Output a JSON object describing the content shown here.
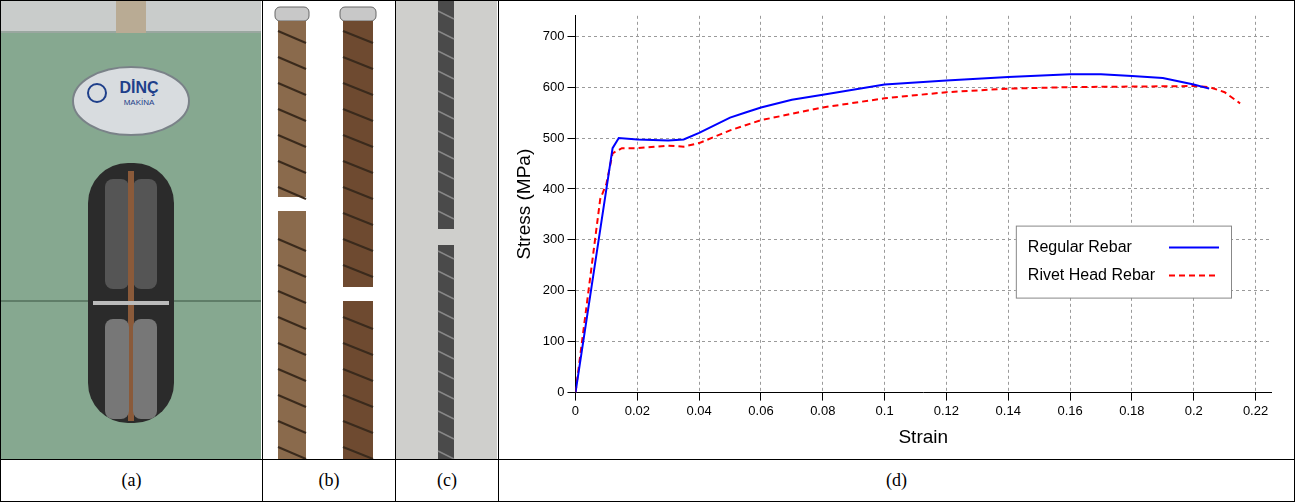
{
  "panels": [
    {
      "label": "(a)",
      "sign": [
        "DİNÇ",
        "MAKİNA"
      ]
    },
    {
      "label": "(b)"
    },
    {
      "label": "(c)"
    },
    {
      "label": "(d)"
    }
  ],
  "chart_data": {
    "type": "line",
    "xlabel": "Strain",
    "ylabel": "Stress (MPa)",
    "series": [
      {
        "name": "Regular Rebar",
        "color": "#0000ff",
        "line_style": "solid",
        "x": [
          0,
          0.012,
          0.014,
          0.02,
          0.03,
          0.035,
          0.04,
          0.05,
          0.055,
          0.06,
          0.07,
          0.08,
          0.1,
          0.12,
          0.14,
          0.16,
          0.17,
          0.18,
          0.19,
          0.2,
          0.205
        ],
        "values": [
          0,
          480,
          500,
          497,
          495,
          497,
          510,
          540,
          550,
          560,
          575,
          585,
          605,
          613,
          620,
          625,
          625,
          622,
          618,
          605,
          597
        ]
      },
      {
        "name": "Rivet Head Rebar",
        "color": "#ff0000",
        "line_style": "dashed",
        "x": [
          0,
          0.008,
          0.01,
          0.012,
          0.015,
          0.02,
          0.03,
          0.035,
          0.04,
          0.05,
          0.06,
          0.08,
          0.1,
          0.12,
          0.14,
          0.16,
          0.18,
          0.2,
          0.205,
          0.21,
          0.215
        ],
        "values": [
          0,
          380,
          410,
          470,
          480,
          480,
          485,
          483,
          490,
          515,
          535,
          560,
          578,
          590,
          597,
          600,
          601,
          602,
          600,
          590,
          568
        ]
      }
    ],
    "xlim": [
      0,
      0.225
    ],
    "xticks": [
      0,
      0.02,
      0.04,
      0.06,
      0.08,
      0.1,
      0.12,
      0.14,
      0.16,
      0.18,
      0.2,
      0.22
    ],
    "ylim": [
      0,
      740
    ],
    "yticks": [
      0,
      100,
      200,
      300,
      400,
      500,
      600,
      700
    ],
    "grid": true,
    "legend": "lower right"
  }
}
